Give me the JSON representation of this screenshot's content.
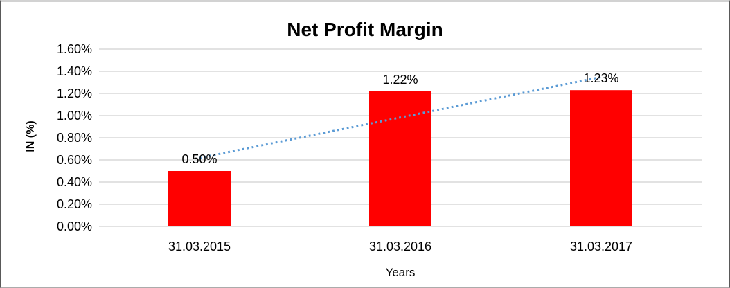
{
  "chart_data": {
    "type": "bar",
    "title": "Net Profit Margin",
    "xlabel": "Years",
    "ylabel": "IN (%)",
    "categories": [
      "31.03.2015",
      "31.03.2016",
      "31.03.2017"
    ],
    "values": [
      0.5,
      1.22,
      1.23
    ],
    "value_labels": [
      "0.50%",
      "1.22%",
      "1.23%"
    ],
    "ylim": [
      0,
      1.6
    ],
    "ytick_step": 0.2,
    "ytick_labels": [
      "0.00%",
      "0.20%",
      "0.40%",
      "0.60%",
      "0.80%",
      "1.00%",
      "1.20%",
      "1.40%",
      "1.60%"
    ],
    "grid": true,
    "legend": "none",
    "bar_color": "#FF0000",
    "gridline_color": "#D9D9D9",
    "text_color": "#000000",
    "trendline": {
      "type": "linear",
      "style": "dotted",
      "color": "#5B9BD5"
    }
  }
}
